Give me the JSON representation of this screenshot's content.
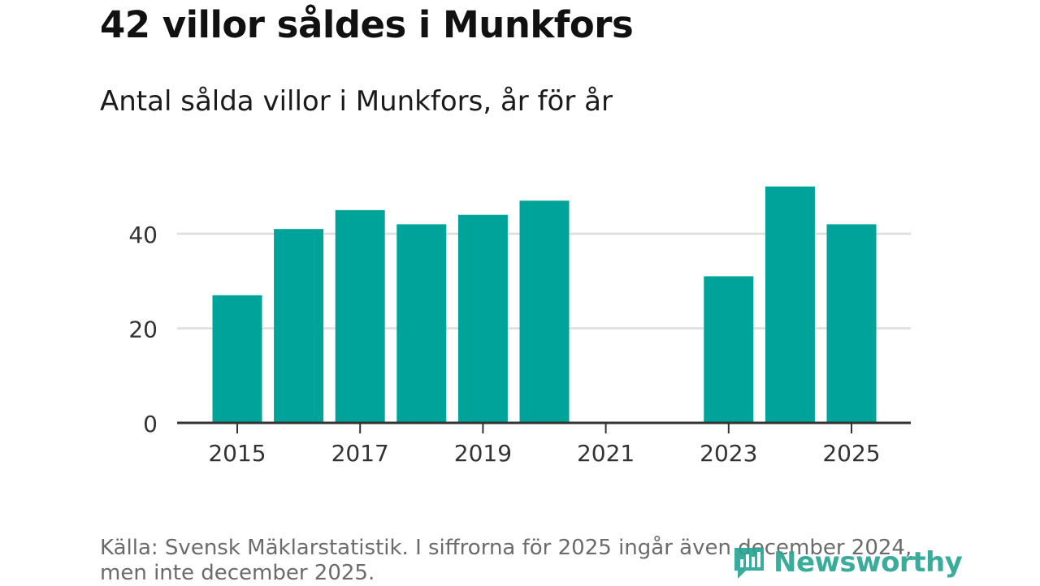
{
  "title": "42 villor såldes i Munkfors",
  "subtitle": "Antal sålda villor i Munkfors, år för år",
  "source": "Källa: Svensk Mäklarstatistik. I siffrorna för 2025 ingår även december 2024, men inte december 2025.",
  "logo_text": "Newsworthy",
  "colors": {
    "bar": "#00a39a",
    "grid": "#dddddd",
    "axis": "#333333",
    "logo": "#2aa593"
  },
  "chart_data": {
    "type": "bar",
    "title": "Antal sålda villor i Munkfors, år för år",
    "xlabel": "",
    "ylabel": "",
    "categories": [
      "2015",
      "2016",
      "2017",
      "2018",
      "2019",
      "2020",
      "2021",
      "2022",
      "2023",
      "2024",
      "2025"
    ],
    "values": [
      27,
      41,
      45,
      42,
      44,
      47,
      null,
      null,
      31,
      50,
      42
    ],
    "ylim": [
      0,
      55
    ],
    "yticks": [
      0,
      20,
      40
    ],
    "xtick_labels": [
      "2015",
      "2017",
      "2019",
      "2021",
      "2023",
      "2025"
    ],
    "grid": true,
    "legend": "none"
  }
}
